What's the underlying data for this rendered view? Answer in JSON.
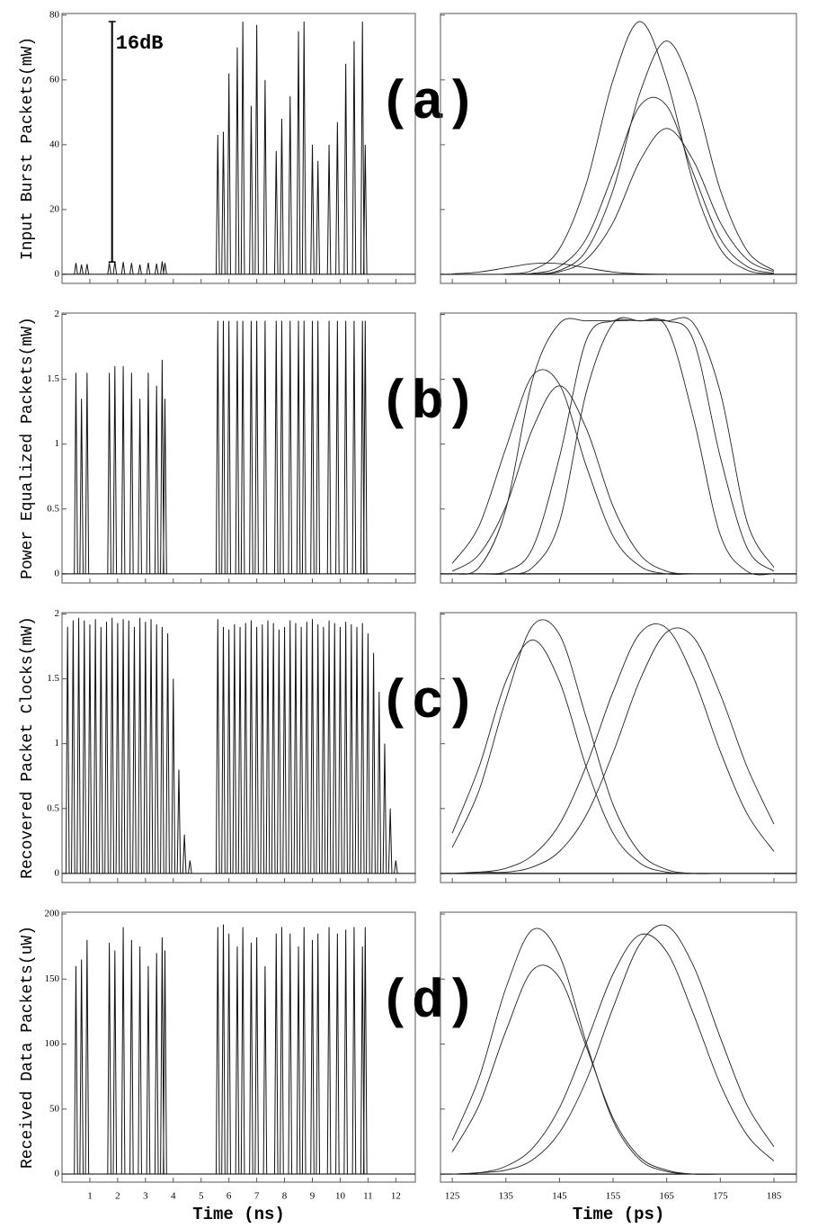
{
  "chart_data": [
    {
      "type": "spikes",
      "panel_label": "(a)",
      "ylabel": "Input Burst Packets(mW)",
      "x": [
        0.5,
        0.7,
        0.9,
        1.7,
        1.9,
        2.2,
        2.5,
        2.8,
        3.1,
        3.4,
        3.6,
        3.7,
        5.6,
        5.8,
        6.0,
        6.3,
        6.5,
        6.8,
        7.0,
        7.3,
        7.7,
        7.9,
        8.2,
        8.5,
        8.7,
        9.0,
        9.2,
        9.6,
        9.9,
        10.2,
        10.5,
        10.8,
        10.9
      ],
      "values": [
        3.5,
        3,
        3.2,
        3.5,
        4,
        3.8,
        3.5,
        3,
        3.6,
        3.3,
        4,
        3.5,
        43,
        44,
        62,
        70,
        78,
        52,
        77,
        60,
        38,
        48,
        55,
        75,
        78,
        40,
        35,
        40,
        47,
        65,
        72,
        78,
        40
      ],
      "annotation": {
        "text": "16dB",
        "x": 1.8,
        "from": 3.8,
        "to": 78
      },
      "xlim": [
        0,
        12.7
      ],
      "ylim": [
        -2.8,
        80.5
      ],
      "xticks": [
        1,
        2,
        3,
        4,
        5,
        6,
        7,
        8,
        9,
        10,
        11,
        12
      ],
      "yticks": [
        0,
        20,
        40,
        60,
        80
      ],
      "tick_labels": false,
      "ytick_labels": true
    },
    {
      "type": "line",
      "xlim": [
        122.8,
        189.2
      ],
      "ylim": [
        -2.8,
        80.5
      ],
      "xticks": [
        125,
        135,
        145,
        155,
        165,
        175,
        185
      ],
      "yticks": [
        0,
        20,
        40,
        60,
        80
      ],
      "tick_labels": false,
      "x": [
        125,
        130,
        135,
        140,
        145,
        150,
        155,
        160,
        165,
        170,
        175,
        180,
        185
      ],
      "series": [
        {
          "values": [
            0,
            0,
            0.1,
            1.3,
            7.9,
            28,
            60,
            78,
            60,
            28,
            7.9,
            1.3,
            0.1
          ]
        },
        {
          "values": [
            0,
            0,
            0,
            0.1,
            1.2,
            7.3,
            26,
            56,
            72,
            56,
            26,
            7.3,
            1.2
          ]
        },
        {
          "values": [
            0,
            0,
            0,
            0.3,
            2.4,
            11,
            31,
            52,
            52,
            31,
            11,
            2.4,
            0.3
          ]
        },
        {
          "values": [
            0,
            0,
            0,
            0.1,
            0.8,
            4.6,
            16,
            35,
            45,
            35,
            16,
            4.6,
            0.8
          ]
        },
        {
          "values": [
            0.15,
            0.7,
            2,
            3.3,
            3.3,
            2,
            0.7,
            0.15,
            0,
            0,
            0,
            0,
            0
          ]
        }
      ]
    },
    {
      "type": "spikes",
      "panel_label": "(b)",
      "ylabel": "Power Equalized Packets(mW)",
      "x": [
        0.5,
        0.7,
        0.9,
        1.7,
        1.9,
        2.2,
        2.5,
        2.8,
        3.1,
        3.4,
        3.6,
        3.7,
        5.6,
        5.8,
        6.0,
        6.3,
        6.5,
        6.8,
        7.0,
        7.3,
        7.7,
        7.9,
        8.2,
        8.5,
        8.7,
        9.0,
        9.2,
        9.6,
        9.9,
        10.2,
        10.5,
        10.8,
        10.9
      ],
      "values": [
        1.55,
        1.35,
        1.55,
        1.55,
        1.6,
        1.6,
        1.55,
        1.35,
        1.55,
        1.45,
        1.65,
        1.35,
        1.95,
        1.95,
        1.95,
        1.95,
        1.95,
        1.95,
        1.95,
        1.95,
        1.95,
        1.95,
        1.95,
        1.95,
        1.95,
        1.95,
        1.95,
        1.95,
        1.95,
        1.95,
        1.95,
        1.95,
        1.95
      ],
      "xlim": [
        0,
        12.7
      ],
      "ylim": [
        -0.07,
        2.01
      ],
      "xticks": [
        1,
        2,
        3,
        4,
        5,
        6,
        7,
        8,
        9,
        10,
        11,
        12
      ],
      "yticks": [
        0,
        0.5,
        1,
        1.5,
        2
      ],
      "tick_labels": false,
      "ytick_labels": true
    },
    {
      "type": "line",
      "xlim": [
        122.8,
        189.2
      ],
      "ylim": [
        -0.07,
        2.01
      ],
      "xticks": [
        125,
        135,
        145,
        155,
        165,
        175,
        185
      ],
      "yticks": [
        0,
        0.5,
        1,
        1.5,
        2
      ],
      "tick_labels": false,
      "x": [
        125,
        130,
        135,
        140,
        145,
        150,
        155,
        160,
        165,
        170,
        175,
        180,
        185
      ],
      "series": [
        {
          "values": [
            0.08,
            0.37,
            0.97,
            1.53,
            1.46,
            0.83,
            0.29,
            0.06,
            0,
            0,
            0,
            0,
            0
          ]
        },
        {
          "values": [
            0.02,
            0.15,
            0.52,
            1.12,
            1.45,
            1.12,
            0.52,
            0.15,
            0.02,
            0,
            0,
            0,
            0
          ]
        },
        {
          "values": [
            0,
            0,
            0.02,
            0.2,
            0.9,
            1.8,
            1.95,
            1.95,
            1.95,
            1.8,
            0.9,
            0.2,
            0.02
          ]
        },
        {
          "values": [
            0,
            0,
            0,
            0.05,
            0.4,
            1.4,
            1.93,
            1.95,
            1.95,
            1.93,
            1.4,
            0.4,
            0.05
          ]
        },
        {
          "values": [
            0,
            0.05,
            0.5,
            1.5,
            1.93,
            1.95,
            1.95,
            1.95,
            1.9,
            1.2,
            0.3,
            0.02,
            0
          ]
        }
      ]
    },
    {
      "type": "spikes",
      "panel_label": "(c)",
      "ylabel": "Recovered Packet Clocks(mW)",
      "x": [
        0.2,
        0.4,
        0.6,
        0.8,
        1.0,
        1.2,
        1.4,
        1.6,
        1.8,
        2.0,
        2.2,
        2.4,
        2.6,
        2.8,
        3.0,
        3.2,
        3.4,
        3.6,
        3.8,
        4.0,
        4.2,
        4.4,
        4.6,
        5.6,
        5.8,
        6.0,
        6.2,
        6.4,
        6.6,
        6.8,
        7.0,
        7.2,
        7.4,
        7.6,
        7.8,
        8.0,
        8.2,
        8.4,
        8.6,
        8.8,
        9.0,
        9.2,
        9.4,
        9.6,
        9.8,
        10.0,
        10.2,
        10.4,
        10.6,
        10.8,
        11.0,
        11.2,
        11.4,
        11.6,
        11.8,
        12.0
      ],
      "values": [
        1.9,
        1.95,
        1.97,
        1.95,
        1.92,
        1.96,
        1.9,
        1.94,
        1.97,
        1.93,
        1.96,
        1.95,
        1.9,
        1.97,
        1.94,
        1.96,
        1.92,
        1.9,
        1.85,
        1.5,
        0.8,
        0.3,
        0.1,
        1.96,
        1.9,
        1.88,
        1.92,
        1.9,
        1.93,
        1.95,
        1.9,
        1.92,
        1.95,
        1.93,
        1.88,
        1.9,
        1.95,
        1.93,
        1.9,
        1.94,
        1.96,
        1.92,
        1.9,
        1.95,
        1.93,
        1.9,
        1.94,
        1.92,
        1.9,
        1.93,
        1.85,
        1.7,
        1.4,
        1.0,
        0.5,
        0.1
      ],
      "xlim": [
        0,
        12.7
      ],
      "ylim": [
        -0.07,
        2.01
      ],
      "xticks": [
        1,
        2,
        3,
        4,
        5,
        6,
        7,
        8,
        9,
        10,
        11,
        12
      ],
      "yticks": [
        0,
        0.5,
        1,
        1.5,
        2
      ],
      "tick_labels": false,
      "ytick_labels": true
    },
    {
      "type": "line",
      "xlim": [
        122.8,
        189.2
      ],
      "ylim": [
        -0.07,
        2.01
      ],
      "xticks": [
        125,
        135,
        145,
        155,
        165,
        175,
        185
      ],
      "yticks": [
        0,
        0.5,
        1,
        1.5,
        2
      ],
      "tick_labels": false,
      "x": [
        125,
        130,
        135,
        140,
        145,
        150,
        155,
        160,
        165,
        170,
        175,
        180,
        185
      ],
      "series": [
        {
          "values": [
            0.2,
            0.64,
            1.34,
            1.91,
            1.84,
            1.2,
            0.53,
            0.16,
            0.03,
            0,
            0,
            0,
            0
          ]
        },
        {
          "values": [
            0.31,
            0.82,
            1.48,
            1.8,
            1.48,
            0.82,
            0.31,
            0.08,
            0.01,
            0,
            0,
            0,
            0
          ]
        },
        {
          "values": [
            0,
            0.01,
            0.04,
            0.14,
            0.38,
            0.83,
            1.4,
            1.85,
            1.89,
            1.51,
            0.94,
            0.46,
            0.17
          ]
        },
        {
          "values": [
            0,
            0.01,
            0.01,
            0.05,
            0.17,
            0.45,
            0.93,
            1.49,
            1.86,
            1.82,
            1.38,
            0.82,
            0.38
          ]
        }
      ]
    },
    {
      "type": "spikes",
      "panel_label": "(d)",
      "ylabel": "Received Data Packets(uW)",
      "xlabel": "Time (ns)",
      "x": [
        0.5,
        0.7,
        0.9,
        1.7,
        1.9,
        2.2,
        2.5,
        2.8,
        3.1,
        3.4,
        3.6,
        3.7,
        5.6,
        5.8,
        6.0,
        6.3,
        6.5,
        6.8,
        7.0,
        7.3,
        7.7,
        7.9,
        8.2,
        8.5,
        8.7,
        9.0,
        9.2,
        9.6,
        9.9,
        10.2,
        10.5,
        10.8,
        10.9
      ],
      "values": [
        160,
        165,
        180,
        178,
        172,
        190,
        180,
        175,
        160,
        170,
        182,
        172,
        190,
        192,
        185,
        175,
        190,
        178,
        182,
        160,
        185,
        190,
        185,
        175,
        190,
        180,
        185,
        190,
        185,
        188,
        190,
        175,
        190
      ],
      "xlim": [
        0,
        12.7
      ],
      "ylim": [
        -6.2,
        201.4
      ],
      "xticks": [
        1,
        2,
        3,
        4,
        5,
        6,
        7,
        8,
        9,
        10,
        11,
        12
      ],
      "yticks": [
        0,
        50,
        100,
        150,
        200
      ],
      "tick_labels": true,
      "ytick_labels": true
    },
    {
      "type": "line",
      "xlabel": "Time (ps)",
      "xlim": [
        122.8,
        189.2
      ],
      "ylim": [
        -6.2,
        201.4
      ],
      "xticks": [
        125,
        135,
        145,
        155,
        165,
        175,
        185
      ],
      "yticks": [
        0,
        50,
        100,
        150,
        200
      ],
      "tick_labels": true,
      "x": [
        125,
        130,
        135,
        140,
        145,
        150,
        155,
        160,
        165,
        170,
        175,
        180,
        185
      ],
      "series": [
        {
          "values": [
            26,
            74,
            143,
            188,
            168,
            101,
            41,
            11,
            2,
            0,
            0,
            0,
            0
          ]
        },
        {
          "values": [
            17,
            53,
            110,
            157,
            151,
            98,
            43,
            13,
            3,
            0,
            0,
            0,
            0
          ]
        },
        {
          "values": [
            0,
            1,
            3,
            11,
            32,
            72,
            128,
            177,
            191,
            160,
            105,
            53,
            21
          ]
        },
        {
          "values": [
            0,
            1,
            6,
            20,
            51,
            101,
            154,
            184,
            171,
            123,
            69,
            30,
            10
          ]
        }
      ]
    }
  ]
}
